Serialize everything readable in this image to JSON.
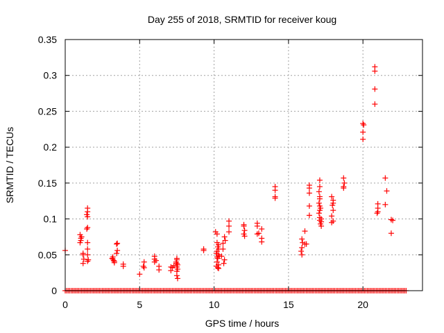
{
  "chart_data": {
    "type": "scatter",
    "title": "Day 255 of 2018, SRMTID for receiver koug",
    "xlabel": "GPS time / hours",
    "ylabel": "SRMTID / TECUs",
    "xlim": [
      0,
      24
    ],
    "ylim": [
      0,
      0.35
    ],
    "xticks": [
      0,
      5,
      10,
      15,
      20
    ],
    "xtick_labels": [
      "0",
      "5",
      "10",
      "15",
      "20"
    ],
    "yticks": [
      0,
      0.05,
      0.1,
      0.15,
      0.2,
      0.25,
      0.3,
      0.35
    ],
    "ytick_labels": [
      "0",
      "0.05",
      "0.1",
      "0.15",
      "0.2",
      "0.25",
      "0.3",
      "0.35"
    ],
    "grid": true,
    "legend": "none",
    "marker": "plus",
    "color": "#ff0000",
    "baseline_zero_x_range": [
      0.0,
      22.9
    ],
    "baseline_zero_step": 0.1,
    "series": [
      {
        "name": "SRMTID",
        "points": [
          [
            0.0,
            0.056
          ],
          [
            1.0,
            0.078
          ],
          [
            1.05,
            0.073
          ],
          [
            1.05,
            0.07
          ],
          [
            1.0,
            0.067
          ],
          [
            1.1,
            0.075
          ],
          [
            1.2,
            0.052
          ],
          [
            1.2,
            0.05
          ],
          [
            1.25,
            0.044
          ],
          [
            1.2,
            0.038
          ],
          [
            1.5,
            0.115
          ],
          [
            1.5,
            0.11
          ],
          [
            1.45,
            0.106
          ],
          [
            1.5,
            0.103
          ],
          [
            1.5,
            0.088
          ],
          [
            1.45,
            0.086
          ],
          [
            1.5,
            0.067
          ],
          [
            1.5,
            0.058
          ],
          [
            1.5,
            0.05
          ],
          [
            1.55,
            0.043
          ],
          [
            1.5,
            0.041
          ],
          [
            3.2,
            0.047
          ],
          [
            3.2,
            0.044
          ],
          [
            3.25,
            0.042
          ],
          [
            3.3,
            0.041
          ],
          [
            3.3,
            0.039
          ],
          [
            3.15,
            0.045
          ],
          [
            3.5,
            0.066
          ],
          [
            3.45,
            0.065
          ],
          [
            3.5,
            0.056
          ],
          [
            3.45,
            0.052
          ],
          [
            3.9,
            0.037
          ],
          [
            3.9,
            0.034
          ],
          [
            5.0,
            0.023
          ],
          [
            5.3,
            0.04
          ],
          [
            5.25,
            0.034
          ],
          [
            5.3,
            0.032
          ],
          [
            6.0,
            0.048
          ],
          [
            6.0,
            0.044
          ],
          [
            6.1,
            0.042
          ],
          [
            6.0,
            0.04
          ],
          [
            6.3,
            0.034
          ],
          [
            6.3,
            0.029
          ],
          [
            7.1,
            0.033
          ],
          [
            7.1,
            0.028
          ],
          [
            7.5,
            0.045
          ],
          [
            7.5,
            0.043
          ],
          [
            7.45,
            0.04
          ],
          [
            7.5,
            0.038
          ],
          [
            7.55,
            0.036
          ],
          [
            7.5,
            0.033
          ],
          [
            7.55,
            0.03
          ],
          [
            7.5,
            0.027
          ],
          [
            7.5,
            0.021
          ],
          [
            7.55,
            0.017
          ],
          [
            7.3,
            0.035
          ],
          [
            7.2,
            0.032
          ],
          [
            9.3,
            0.058
          ],
          [
            9.3,
            0.056
          ],
          [
            10.1,
            0.082
          ],
          [
            10.2,
            0.079
          ],
          [
            10.2,
            0.067
          ],
          [
            10.3,
            0.064
          ],
          [
            10.25,
            0.061
          ],
          [
            10.3,
            0.058
          ],
          [
            10.2,
            0.055
          ],
          [
            10.15,
            0.052
          ],
          [
            10.3,
            0.05
          ],
          [
            10.35,
            0.048
          ],
          [
            10.2,
            0.047
          ],
          [
            10.25,
            0.045
          ],
          [
            10.2,
            0.04
          ],
          [
            10.3,
            0.036
          ],
          [
            10.15,
            0.034
          ],
          [
            10.25,
            0.032
          ],
          [
            10.3,
            0.031
          ],
          [
            10.6,
            0.066
          ],
          [
            10.6,
            0.058
          ],
          [
            10.5,
            0.048
          ],
          [
            10.7,
            0.043
          ],
          [
            10.65,
            0.038
          ],
          [
            10.7,
            0.075
          ],
          [
            10.75,
            0.07
          ],
          [
            11.0,
            0.097
          ],
          [
            11.0,
            0.09
          ],
          [
            11.0,
            0.082
          ],
          [
            12.0,
            0.092
          ],
          [
            12.0,
            0.09
          ],
          [
            12.05,
            0.084
          ],
          [
            12.0,
            0.079
          ],
          [
            12.05,
            0.076
          ],
          [
            12.9,
            0.094
          ],
          [
            12.9,
            0.09
          ],
          [
            12.9,
            0.079
          ],
          [
            13.0,
            0.08
          ],
          [
            13.2,
            0.086
          ],
          [
            13.2,
            0.073
          ],
          [
            13.2,
            0.068
          ],
          [
            14.1,
            0.145
          ],
          [
            14.1,
            0.14
          ],
          [
            14.1,
            0.131
          ],
          [
            14.1,
            0.129
          ],
          [
            15.9,
            0.072
          ],
          [
            15.95,
            0.067
          ],
          [
            15.9,
            0.06
          ],
          [
            15.85,
            0.055
          ],
          [
            15.9,
            0.05
          ],
          [
            16.1,
            0.083
          ],
          [
            16.1,
            0.065
          ],
          [
            16.2,
            0.065
          ],
          [
            16.4,
            0.147
          ],
          [
            16.4,
            0.143
          ],
          [
            16.4,
            0.136
          ],
          [
            16.4,
            0.118
          ],
          [
            16.4,
            0.105
          ],
          [
            17.1,
            0.154
          ],
          [
            17.1,
            0.145
          ],
          [
            17.05,
            0.138
          ],
          [
            17.1,
            0.131
          ],
          [
            17.1,
            0.128
          ],
          [
            17.05,
            0.122
          ],
          [
            17.1,
            0.118
          ],
          [
            17.15,
            0.115
          ],
          [
            17.1,
            0.112
          ],
          [
            17.05,
            0.108
          ],
          [
            17.1,
            0.102
          ],
          [
            17.2,
            0.1
          ],
          [
            17.1,
            0.098
          ],
          [
            17.2,
            0.096
          ],
          [
            17.15,
            0.093
          ],
          [
            17.2,
            0.09
          ],
          [
            17.9,
            0.131
          ],
          [
            18.0,
            0.126
          ],
          [
            18.0,
            0.122
          ],
          [
            17.95,
            0.119
          ],
          [
            18.0,
            0.112
          ],
          [
            17.9,
            0.104
          ],
          [
            18.0,
            0.097
          ],
          [
            17.9,
            0.095
          ],
          [
            18.7,
            0.157
          ],
          [
            18.75,
            0.15
          ],
          [
            18.7,
            0.145
          ],
          [
            18.7,
            0.143
          ],
          [
            20.0,
            0.233
          ],
          [
            20.05,
            0.231
          ],
          [
            20.0,
            0.221
          ],
          [
            20.0,
            0.211
          ],
          [
            20.8,
            0.312
          ],
          [
            20.8,
            0.306
          ],
          [
            20.8,
            0.281
          ],
          [
            20.8,
            0.26
          ],
          [
            21.0,
            0.121
          ],
          [
            21.0,
            0.115
          ],
          [
            21.0,
            0.11
          ],
          [
            20.95,
            0.108
          ],
          [
            21.5,
            0.157
          ],
          [
            21.6,
            0.139
          ],
          [
            21.5,
            0.12
          ],
          [
            21.9,
            0.099
          ],
          [
            22.0,
            0.098
          ],
          [
            21.9,
            0.08
          ]
        ]
      }
    ]
  }
}
